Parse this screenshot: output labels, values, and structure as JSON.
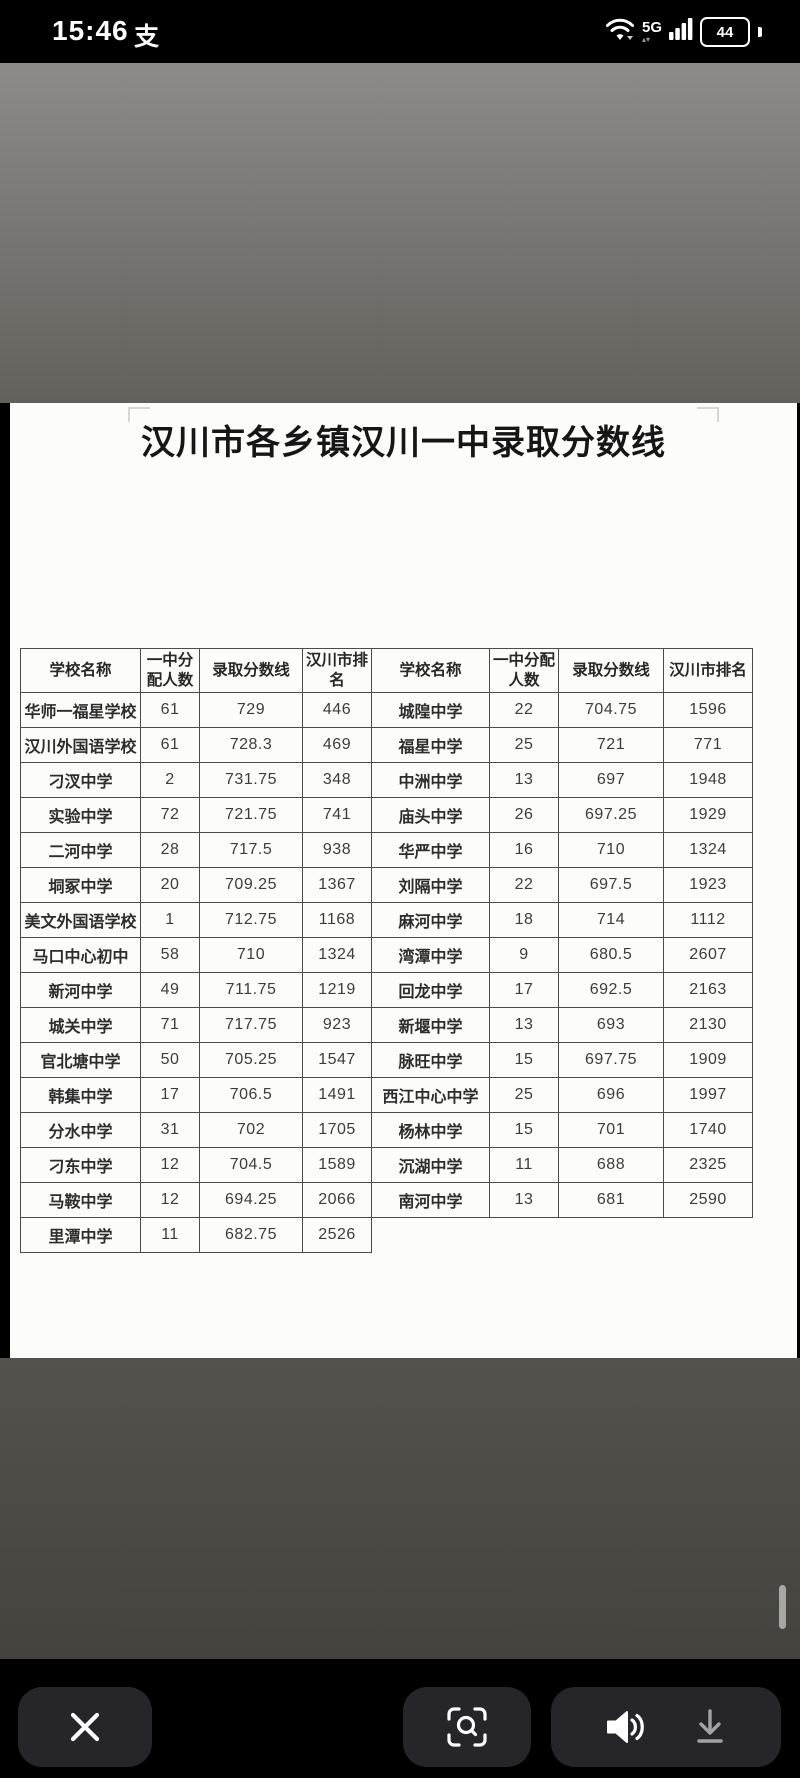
{
  "status_bar": {
    "time": "15:46",
    "alipay_glyph": "支",
    "network_label": "5G",
    "battery_level": "44",
    "icons": [
      "alipay-icon",
      "wifi-icon",
      "signal-bars-icon",
      "battery-icon"
    ]
  },
  "document": {
    "title": "汉川市各乡镇汉川一中录取分数线",
    "table": {
      "headers": [
        "学校名称",
        "一中分配人数",
        "录取分数线",
        "汉川市排名"
      ],
      "left_rows": [
        [
          "华师一福星学校",
          "61",
          "729",
          "446"
        ],
        [
          "汉川外国语学校",
          "61",
          "728.3",
          "469"
        ],
        [
          "刁汊中学",
          "2",
          "731.75",
          "348"
        ],
        [
          "实验中学",
          "72",
          "721.75",
          "741"
        ],
        [
          "二河中学",
          "28",
          "717.5",
          "938"
        ],
        [
          "垌冢中学",
          "20",
          "709.25",
          "1367"
        ],
        [
          "美文外国语学校",
          "1",
          "712.75",
          "1168"
        ],
        [
          "马口中心初中",
          "58",
          "710",
          "1324"
        ],
        [
          "新河中学",
          "49",
          "711.75",
          "1219"
        ],
        [
          "城关中学",
          "71",
          "717.75",
          "923"
        ],
        [
          "官北塘中学",
          "50",
          "705.25",
          "1547"
        ],
        [
          "韩集中学",
          "17",
          "706.5",
          "1491"
        ],
        [
          "分水中学",
          "31",
          "702",
          "1705"
        ],
        [
          "刁东中学",
          "12",
          "704.5",
          "1589"
        ],
        [
          "马鞍中学",
          "12",
          "694.25",
          "2066"
        ],
        [
          "里潭中学",
          "11",
          "682.75",
          "2526"
        ]
      ],
      "right_rows": [
        [
          "城隍中学",
          "22",
          "704.75",
          "1596"
        ],
        [
          "福星中学",
          "25",
          "721",
          "771"
        ],
        [
          "中洲中学",
          "13",
          "697",
          "1948"
        ],
        [
          "庙头中学",
          "26",
          "697.25",
          "1929"
        ],
        [
          "华严中学",
          "16",
          "710",
          "1324"
        ],
        [
          "刘隔中学",
          "22",
          "697.5",
          "1923"
        ],
        [
          "麻河中学",
          "18",
          "714",
          "1112"
        ],
        [
          "湾潭中学",
          "9",
          "680.5",
          "2607"
        ],
        [
          "回龙中学",
          "17",
          "692.5",
          "2163"
        ],
        [
          "新堰中学",
          "13",
          "693",
          "2130"
        ],
        [
          "脉旺中学",
          "15",
          "697.75",
          "1909"
        ],
        [
          "西江中心中学",
          "25",
          "696",
          "1997"
        ],
        [
          "杨林中学",
          "15",
          "701",
          "1740"
        ],
        [
          "沉湖中学",
          "11",
          "688",
          "2325"
        ],
        [
          "南河中学",
          "13",
          "681",
          "2590"
        ]
      ]
    }
  },
  "bottom_bar": {
    "buttons": [
      "close",
      "image-search",
      "speaker",
      "download"
    ]
  },
  "colors": {
    "button_bg": "#26262a",
    "table_border": "#4b4b4b",
    "download_icon": "#a3a3a3",
    "backdrop_top": "#8c8b88",
    "backdrop_bottom": "#44433e"
  }
}
